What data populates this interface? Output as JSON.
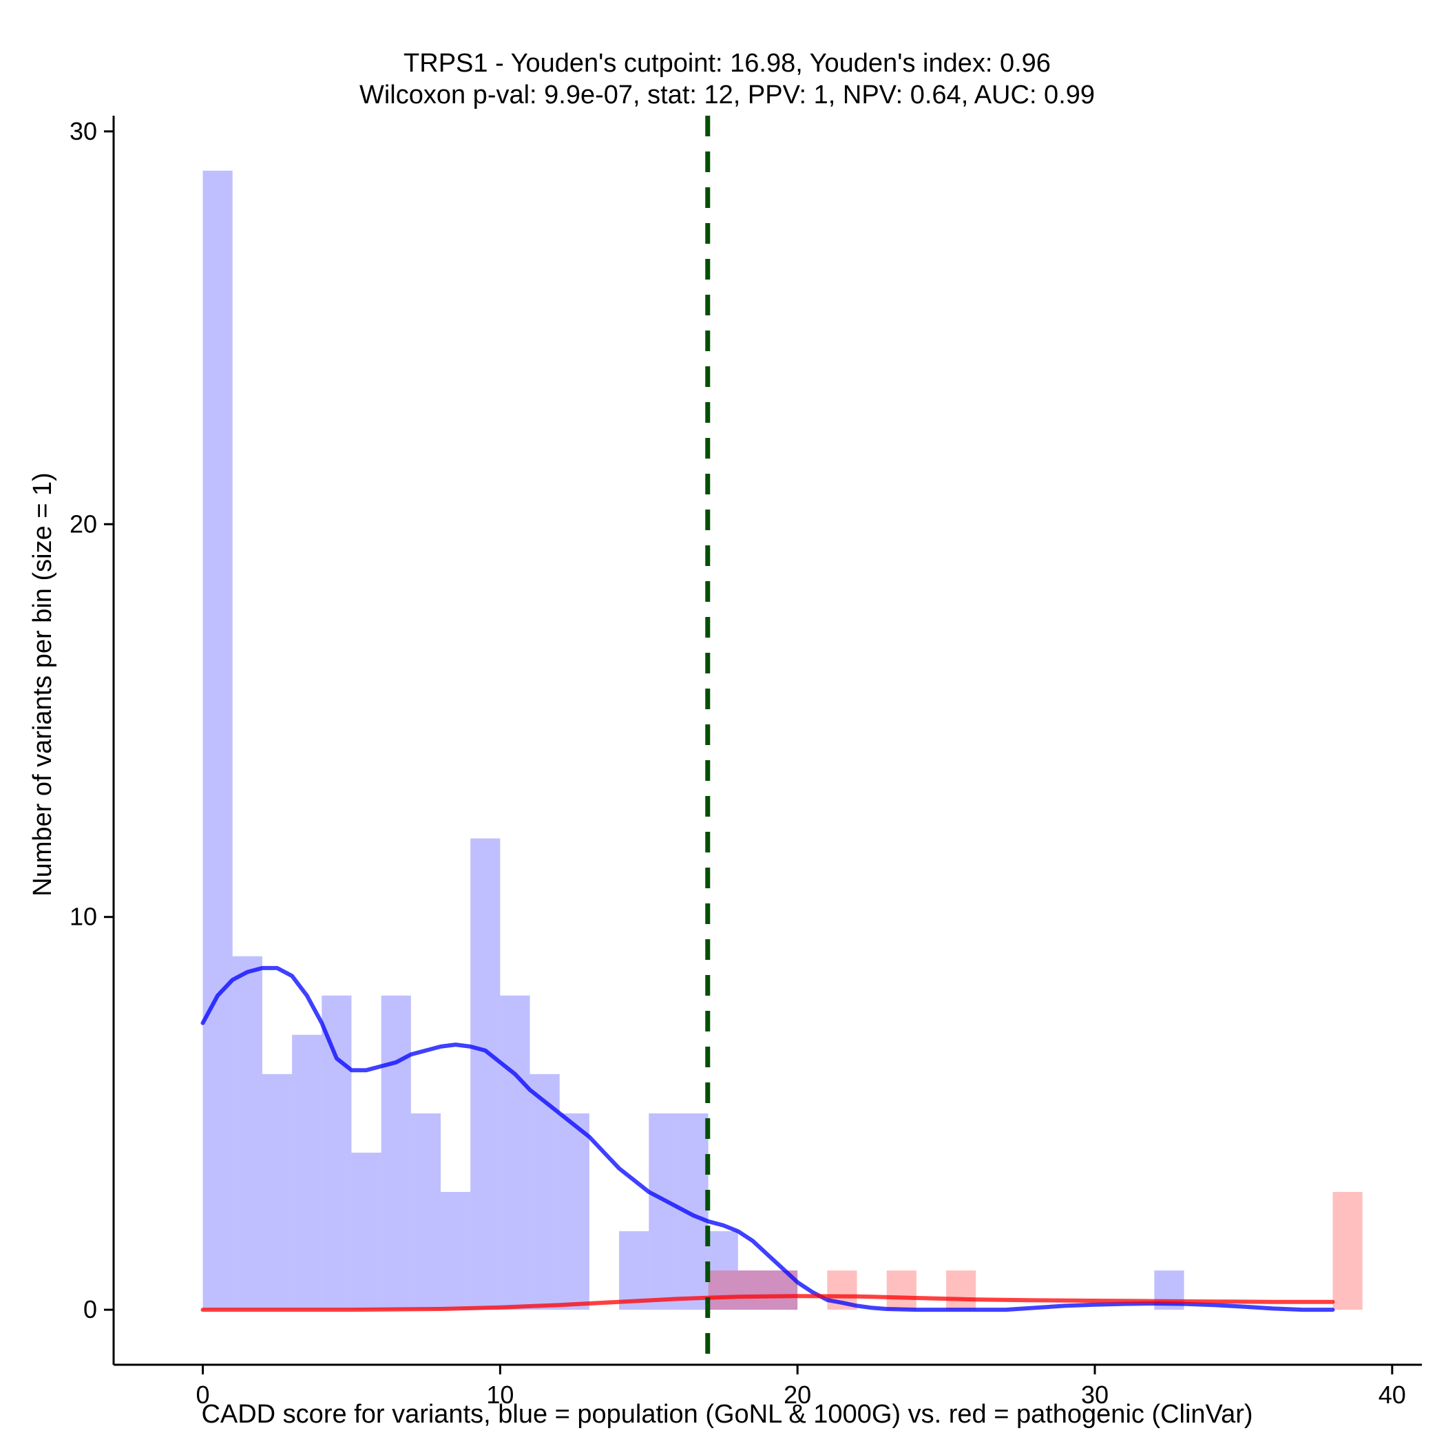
{
  "chart_data": {
    "type": "bar",
    "title": "TRPS1 - Youden's cutpoint: 16.98, Youden's index: 0.96",
    "subtitle": "Wilcoxon p-val: 9.9e-07, stat: 12, PPV: 1, NPV: 0.64, AUC: 0.99",
    "xlabel": "CADD score for variants, blue = population (GoNL & 1000G) vs. red = pathogenic (ClinVar)",
    "ylabel": "Number of variants per bin (size = 1)",
    "xlim": [
      -3,
      41
    ],
    "ylim": [
      -1.4,
      30.4
    ],
    "x_ticks": [
      0,
      10,
      20,
      30,
      40
    ],
    "y_ticks": [
      0,
      10,
      20,
      30
    ],
    "bin_size": 1,
    "cutpoint": 16.98,
    "series": [
      {
        "name": "population (GoNL & 1000G)",
        "color": "#0000ff",
        "bins": [
          {
            "x": 0,
            "count": 29
          },
          {
            "x": 1,
            "count": 9
          },
          {
            "x": 2,
            "count": 6
          },
          {
            "x": 3,
            "count": 7
          },
          {
            "x": 4,
            "count": 8
          },
          {
            "x": 5,
            "count": 4
          },
          {
            "x": 6,
            "count": 8
          },
          {
            "x": 7,
            "count": 5
          },
          {
            "x": 8,
            "count": 3
          },
          {
            "x": 9,
            "count": 12
          },
          {
            "x": 10,
            "count": 8
          },
          {
            "x": 11,
            "count": 6
          },
          {
            "x": 12,
            "count": 5
          },
          {
            "x": 14,
            "count": 2
          },
          {
            "x": 15,
            "count": 5
          },
          {
            "x": 16,
            "count": 5
          },
          {
            "x": 17,
            "count": 2
          },
          {
            "x": 18,
            "count": 1
          },
          {
            "x": 19,
            "count": 1
          },
          {
            "x": 32,
            "count": 1
          }
        ],
        "density_curve": [
          [
            0,
            7.3
          ],
          [
            0.5,
            8.0
          ],
          [
            1,
            8.4
          ],
          [
            1.5,
            8.6
          ],
          [
            2,
            8.7
          ],
          [
            2.5,
            8.7
          ],
          [
            3,
            8.5
          ],
          [
            3.5,
            8.0
          ],
          [
            4,
            7.3
          ],
          [
            4.5,
            6.4
          ],
          [
            5,
            6.1
          ],
          [
            5.5,
            6.1
          ],
          [
            6,
            6.2
          ],
          [
            6.5,
            6.3
          ],
          [
            7,
            6.5
          ],
          [
            7.5,
            6.6
          ],
          [
            8,
            6.7
          ],
          [
            8.5,
            6.75
          ],
          [
            9,
            6.7
          ],
          [
            9.5,
            6.6
          ],
          [
            10,
            6.3
          ],
          [
            10.5,
            6.0
          ],
          [
            11,
            5.6
          ],
          [
            11.5,
            5.3
          ],
          [
            12,
            5.0
          ],
          [
            12.5,
            4.7
          ],
          [
            13,
            4.4
          ],
          [
            13.5,
            4.0
          ],
          [
            14,
            3.6
          ],
          [
            14.5,
            3.3
          ],
          [
            15,
            3.0
          ],
          [
            15.5,
            2.8
          ],
          [
            16,
            2.6
          ],
          [
            16.5,
            2.4
          ],
          [
            17,
            2.25
          ],
          [
            17.5,
            2.15
          ],
          [
            18,
            2.0
          ],
          [
            18.5,
            1.75
          ],
          [
            19,
            1.4
          ],
          [
            19.5,
            1.05
          ],
          [
            20,
            0.7
          ],
          [
            20.5,
            0.45
          ],
          [
            21,
            0.25
          ],
          [
            21.5,
            0.18
          ],
          [
            22,
            0.1
          ],
          [
            22.5,
            0.05
          ],
          [
            23,
            0.02
          ],
          [
            24,
            0.0
          ],
          [
            25,
            0.0
          ],
          [
            27,
            0.0
          ],
          [
            28,
            0.05
          ],
          [
            29,
            0.1
          ],
          [
            30,
            0.13
          ],
          [
            31,
            0.15
          ],
          [
            32,
            0.16
          ],
          [
            33,
            0.15
          ],
          [
            34,
            0.12
          ],
          [
            35,
            0.08
          ],
          [
            36,
            0.03
          ],
          [
            37,
            0.0
          ],
          [
            38,
            0.0
          ]
        ]
      },
      {
        "name": "pathogenic (ClinVar)",
        "color": "#ff0000",
        "bins": [
          {
            "x": 17,
            "count": 1
          },
          {
            "x": 18,
            "count": 1
          },
          {
            "x": 19,
            "count": 1
          },
          {
            "x": 21,
            "count": 1
          },
          {
            "x": 23,
            "count": 1
          },
          {
            "x": 25,
            "count": 1
          },
          {
            "x": 38,
            "count": 3
          }
        ],
        "density_curve": [
          [
            0,
            0.0
          ],
          [
            5,
            0.0
          ],
          [
            8,
            0.02
          ],
          [
            10,
            0.06
          ],
          [
            12,
            0.12
          ],
          [
            14,
            0.2
          ],
          [
            16,
            0.28
          ],
          [
            18,
            0.33
          ],
          [
            20,
            0.35
          ],
          [
            22,
            0.34
          ],
          [
            24,
            0.3
          ],
          [
            26,
            0.26
          ],
          [
            28,
            0.24
          ],
          [
            30,
            0.23
          ],
          [
            32,
            0.22
          ],
          [
            34,
            0.21
          ],
          [
            36,
            0.2
          ],
          [
            38,
            0.2
          ]
        ]
      }
    ]
  }
}
